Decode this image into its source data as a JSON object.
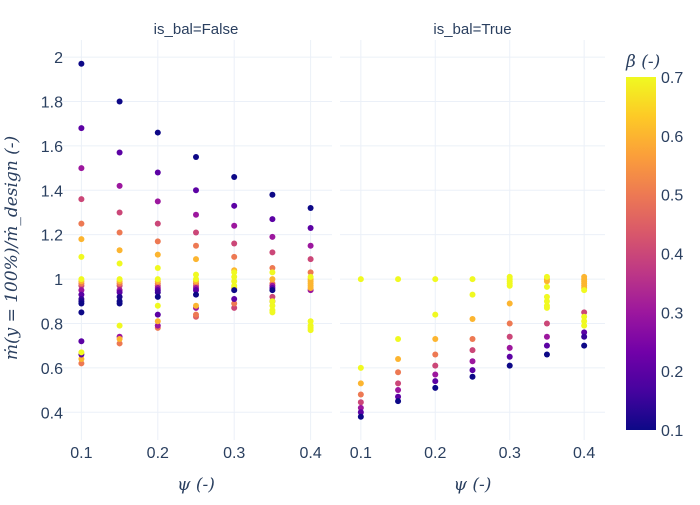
{
  "chart_data": {
    "type": "scatter",
    "facet_variable": "is_bal",
    "xlabel": "ψ (-)",
    "ylabel": "ṁ(y = 100%)/ṁ_design (-)",
    "xlim": [
      0.072,
      0.428
    ],
    "ylim": [
      0.275,
      2.077
    ],
    "xticks": [
      0.1,
      0.2,
      0.3,
      0.4
    ],
    "xtick_labels": [
      "0.1",
      "0.2",
      "0.3",
      "0.4"
    ],
    "yticks": [
      0.4,
      0.6,
      0.8,
      1.0,
      1.2,
      1.4,
      1.6,
      1.8,
      2.0
    ],
    "ytick_labels": [
      "0.4",
      "0.6",
      "0.8",
      "1",
      "1.2",
      "1.4",
      "1.6",
      "1.8",
      "2"
    ],
    "grid": true,
    "colorbar": {
      "title": "β (-)",
      "range": [
        0.1,
        0.7
      ],
      "ticks": [
        "0.1",
        "0.2",
        "0.3",
        "0.4",
        "0.5",
        "0.6",
        "0.7"
      ],
      "colorscale": "plasma",
      "stops": [
        "#0d0887",
        "#46039f",
        "#7201a8",
        "#9c179e",
        "#bd3786",
        "#d8576b",
        "#ed7953",
        "#fb9f3a",
        "#fdca26",
        "#f0f921"
      ]
    },
    "point_fields": [
      "psi",
      "mdot_ratio",
      "beta"
    ],
    "facets": [
      {
        "title": "is_bal=False",
        "points": [
          [
            0.1,
            1.97,
            0.1
          ],
          [
            0.1,
            1.68,
            0.2
          ],
          [
            0.1,
            1.5,
            0.3
          ],
          [
            0.1,
            1.36,
            0.4
          ],
          [
            0.1,
            1.25,
            0.5
          ],
          [
            0.1,
            1.18,
            0.6
          ],
          [
            0.1,
            1.1,
            0.7
          ],
          [
            0.1,
            0.89,
            0.1
          ],
          [
            0.1,
            0.9,
            0.12
          ],
          [
            0.1,
            0.91,
            0.15
          ],
          [
            0.1,
            0.93,
            0.2
          ],
          [
            0.1,
            0.95,
            0.3
          ],
          [
            0.1,
            0.97,
            0.4
          ],
          [
            0.1,
            0.98,
            0.5
          ],
          [
            0.1,
            0.99,
            0.6
          ],
          [
            0.1,
            1.0,
            0.7
          ],
          [
            0.1,
            0.85,
            0.1
          ],
          [
            0.1,
            0.72,
            0.2
          ],
          [
            0.1,
            0.67,
            0.7
          ],
          [
            0.1,
            0.66,
            0.2
          ],
          [
            0.1,
            0.64,
            0.6
          ],
          [
            0.1,
            0.62,
            0.5
          ],
          [
            0.15,
            1.8,
            0.1
          ],
          [
            0.15,
            1.57,
            0.2
          ],
          [
            0.15,
            1.42,
            0.3
          ],
          [
            0.15,
            1.3,
            0.4
          ],
          [
            0.15,
            1.21,
            0.5
          ],
          [
            0.15,
            1.13,
            0.6
          ],
          [
            0.15,
            1.07,
            0.7
          ],
          [
            0.15,
            0.9,
            0.1
          ],
          [
            0.15,
            0.92,
            0.12
          ],
          [
            0.15,
            0.94,
            0.2
          ],
          [
            0.15,
            0.95,
            0.3
          ],
          [
            0.15,
            0.97,
            0.4
          ],
          [
            0.15,
            0.98,
            0.5
          ],
          [
            0.15,
            0.99,
            0.6
          ],
          [
            0.15,
            1.0,
            0.7
          ],
          [
            0.15,
            0.89,
            0.1
          ],
          [
            0.15,
            0.79,
            0.7
          ],
          [
            0.15,
            0.74,
            0.3
          ],
          [
            0.15,
            0.73,
            0.6
          ],
          [
            0.15,
            0.71,
            0.5
          ],
          [
            0.2,
            1.66,
            0.1
          ],
          [
            0.2,
            1.48,
            0.2
          ],
          [
            0.2,
            1.35,
            0.3
          ],
          [
            0.2,
            1.25,
            0.4
          ],
          [
            0.2,
            1.17,
            0.5
          ],
          [
            0.2,
            1.11,
            0.6
          ],
          [
            0.2,
            1.05,
            0.7
          ],
          [
            0.2,
            0.92,
            0.1
          ],
          [
            0.2,
            0.94,
            0.15
          ],
          [
            0.2,
            0.95,
            0.2
          ],
          [
            0.2,
            0.96,
            0.3
          ],
          [
            0.2,
            0.97,
            0.4
          ],
          [
            0.2,
            0.98,
            0.5
          ],
          [
            0.2,
            0.99,
            0.6
          ],
          [
            0.2,
            1.0,
            0.7
          ],
          [
            0.2,
            0.88,
            0.7
          ],
          [
            0.2,
            0.84,
            0.2
          ],
          [
            0.2,
            0.81,
            0.6
          ],
          [
            0.2,
            0.79,
            0.3
          ],
          [
            0.2,
            0.78,
            0.5
          ],
          [
            0.25,
            1.55,
            0.1
          ],
          [
            0.25,
            1.4,
            0.2
          ],
          [
            0.25,
            1.29,
            0.3
          ],
          [
            0.25,
            1.21,
            0.4
          ],
          [
            0.25,
            1.15,
            0.5
          ],
          [
            0.25,
            1.09,
            0.6
          ],
          [
            0.25,
            1.02,
            0.7
          ],
          [
            0.25,
            0.93,
            0.1
          ],
          [
            0.25,
            0.95,
            0.2
          ],
          [
            0.25,
            0.96,
            0.3
          ],
          [
            0.25,
            0.97,
            0.4
          ],
          [
            0.25,
            0.98,
            0.5
          ],
          [
            0.25,
            0.99,
            0.6
          ],
          [
            0.25,
            1.0,
            0.7
          ],
          [
            0.25,
            0.88,
            0.6
          ],
          [
            0.25,
            0.87,
            0.3
          ],
          [
            0.25,
            0.84,
            0.5
          ],
          [
            0.25,
            0.83,
            0.45
          ],
          [
            0.3,
            1.46,
            0.1
          ],
          [
            0.3,
            1.33,
            0.2
          ],
          [
            0.3,
            1.24,
            0.3
          ],
          [
            0.3,
            1.16,
            0.4
          ],
          [
            0.3,
            1.1,
            0.5
          ],
          [
            0.3,
            1.04,
            0.6
          ],
          [
            0.3,
            1.03,
            0.7
          ],
          [
            0.3,
            0.95,
            0.1
          ],
          [
            0.3,
            0.96,
            0.6
          ],
          [
            0.3,
            0.97,
            0.7
          ],
          [
            0.3,
            0.99,
            0.7
          ],
          [
            0.3,
            1.01,
            0.7
          ],
          [
            0.3,
            0.91,
            0.2
          ],
          [
            0.3,
            0.89,
            0.5
          ],
          [
            0.3,
            0.87,
            0.4
          ],
          [
            0.35,
            1.38,
            0.1
          ],
          [
            0.35,
            1.27,
            0.2
          ],
          [
            0.35,
            1.19,
            0.3
          ],
          [
            0.35,
            1.12,
            0.4
          ],
          [
            0.35,
            1.05,
            0.5
          ],
          [
            0.35,
            1.03,
            0.7
          ],
          [
            0.35,
            0.95,
            0.1
          ],
          [
            0.35,
            0.96,
            0.2
          ],
          [
            0.35,
            0.97,
            0.3
          ],
          [
            0.35,
            0.98,
            0.5
          ],
          [
            0.35,
            1.0,
            0.6
          ],
          [
            0.35,
            0.92,
            0.4
          ],
          [
            0.35,
            0.9,
            0.3
          ],
          [
            0.35,
            0.9,
            0.7
          ],
          [
            0.35,
            0.88,
            0.7
          ],
          [
            0.35,
            0.86,
            0.7
          ],
          [
            0.35,
            0.85,
            0.7
          ],
          [
            0.4,
            1.32,
            0.1
          ],
          [
            0.4,
            1.23,
            0.2
          ],
          [
            0.4,
            1.15,
            0.3
          ],
          [
            0.4,
            1.09,
            0.4
          ],
          [
            0.4,
            1.03,
            0.5
          ],
          [
            0.4,
            1.01,
            0.7
          ],
          [
            0.4,
            0.96,
            0.6
          ],
          [
            0.4,
            0.97,
            0.6
          ],
          [
            0.4,
            0.98,
            0.6
          ],
          [
            0.4,
            0.99,
            0.6
          ],
          [
            0.4,
            1.0,
            0.6
          ],
          [
            0.4,
            0.95,
            0.3
          ],
          [
            0.4,
            0.81,
            0.7
          ],
          [
            0.4,
            0.79,
            0.7
          ],
          [
            0.4,
            0.78,
            0.7
          ],
          [
            0.4,
            0.77,
            0.7
          ]
        ]
      },
      {
        "title": "is_bal=True",
        "points": [
          [
            0.1,
            1.0,
            0.7
          ],
          [
            0.1,
            0.6,
            0.7
          ],
          [
            0.1,
            0.53,
            0.6
          ],
          [
            0.1,
            0.48,
            0.5
          ],
          [
            0.1,
            0.445,
            0.4
          ],
          [
            0.1,
            0.42,
            0.3
          ],
          [
            0.1,
            0.4,
            0.2
          ],
          [
            0.1,
            0.38,
            0.1
          ],
          [
            0.15,
            1.0,
            0.7
          ],
          [
            0.15,
            0.73,
            0.7
          ],
          [
            0.15,
            0.64,
            0.6
          ],
          [
            0.15,
            0.58,
            0.5
          ],
          [
            0.15,
            0.53,
            0.4
          ],
          [
            0.15,
            0.5,
            0.3
          ],
          [
            0.15,
            0.47,
            0.2
          ],
          [
            0.15,
            0.45,
            0.1
          ],
          [
            0.2,
            1.0,
            0.7
          ],
          [
            0.2,
            0.84,
            0.7
          ],
          [
            0.2,
            0.73,
            0.6
          ],
          [
            0.2,
            0.66,
            0.5
          ],
          [
            0.2,
            0.61,
            0.4
          ],
          [
            0.2,
            0.57,
            0.3
          ],
          [
            0.2,
            0.54,
            0.2
          ],
          [
            0.2,
            0.51,
            0.1
          ],
          [
            0.25,
            1.0,
            0.7
          ],
          [
            0.25,
            0.93,
            0.7
          ],
          [
            0.25,
            0.82,
            0.6
          ],
          [
            0.25,
            0.73,
            0.5
          ],
          [
            0.25,
            0.68,
            0.4
          ],
          [
            0.25,
            0.63,
            0.3
          ],
          [
            0.25,
            0.59,
            0.2
          ],
          [
            0.25,
            0.56,
            0.1
          ],
          [
            0.3,
            1.01,
            0.7
          ],
          [
            0.3,
            1.0,
            0.7
          ],
          [
            0.3,
            0.99,
            0.7
          ],
          [
            0.3,
            0.98,
            0.7
          ],
          [
            0.3,
            0.97,
            0.7
          ],
          [
            0.3,
            0.89,
            0.6
          ],
          [
            0.3,
            0.8,
            0.5
          ],
          [
            0.3,
            0.74,
            0.4
          ],
          [
            0.3,
            0.69,
            0.3
          ],
          [
            0.3,
            0.65,
            0.2
          ],
          [
            0.3,
            0.61,
            0.1
          ],
          [
            0.35,
            1.01,
            0.7
          ],
          [
            0.35,
            1.0,
            0.6
          ],
          [
            0.35,
            0.99,
            0.6
          ],
          [
            0.35,
            0.965,
            0.7
          ],
          [
            0.35,
            0.92,
            0.7
          ],
          [
            0.35,
            0.9,
            0.7
          ],
          [
            0.35,
            0.88,
            0.7
          ],
          [
            0.35,
            0.87,
            0.7
          ],
          [
            0.35,
            0.8,
            0.4
          ],
          [
            0.35,
            0.74,
            0.3
          ],
          [
            0.35,
            0.7,
            0.2
          ],
          [
            0.35,
            0.66,
            0.1
          ],
          [
            0.4,
            1.01,
            0.6
          ],
          [
            0.4,
            1.0,
            0.6
          ],
          [
            0.4,
            0.99,
            0.6
          ],
          [
            0.4,
            0.98,
            0.6
          ],
          [
            0.4,
            0.97,
            0.6
          ],
          [
            0.4,
            0.96,
            0.6
          ],
          [
            0.4,
            0.95,
            0.7
          ],
          [
            0.4,
            0.85,
            0.4
          ],
          [
            0.4,
            0.83,
            0.7
          ],
          [
            0.4,
            0.81,
            0.7
          ],
          [
            0.4,
            0.79,
            0.7
          ],
          [
            0.4,
            0.76,
            0.2
          ],
          [
            0.4,
            0.74,
            0.15
          ],
          [
            0.4,
            0.7,
            0.1
          ]
        ]
      }
    ]
  }
}
